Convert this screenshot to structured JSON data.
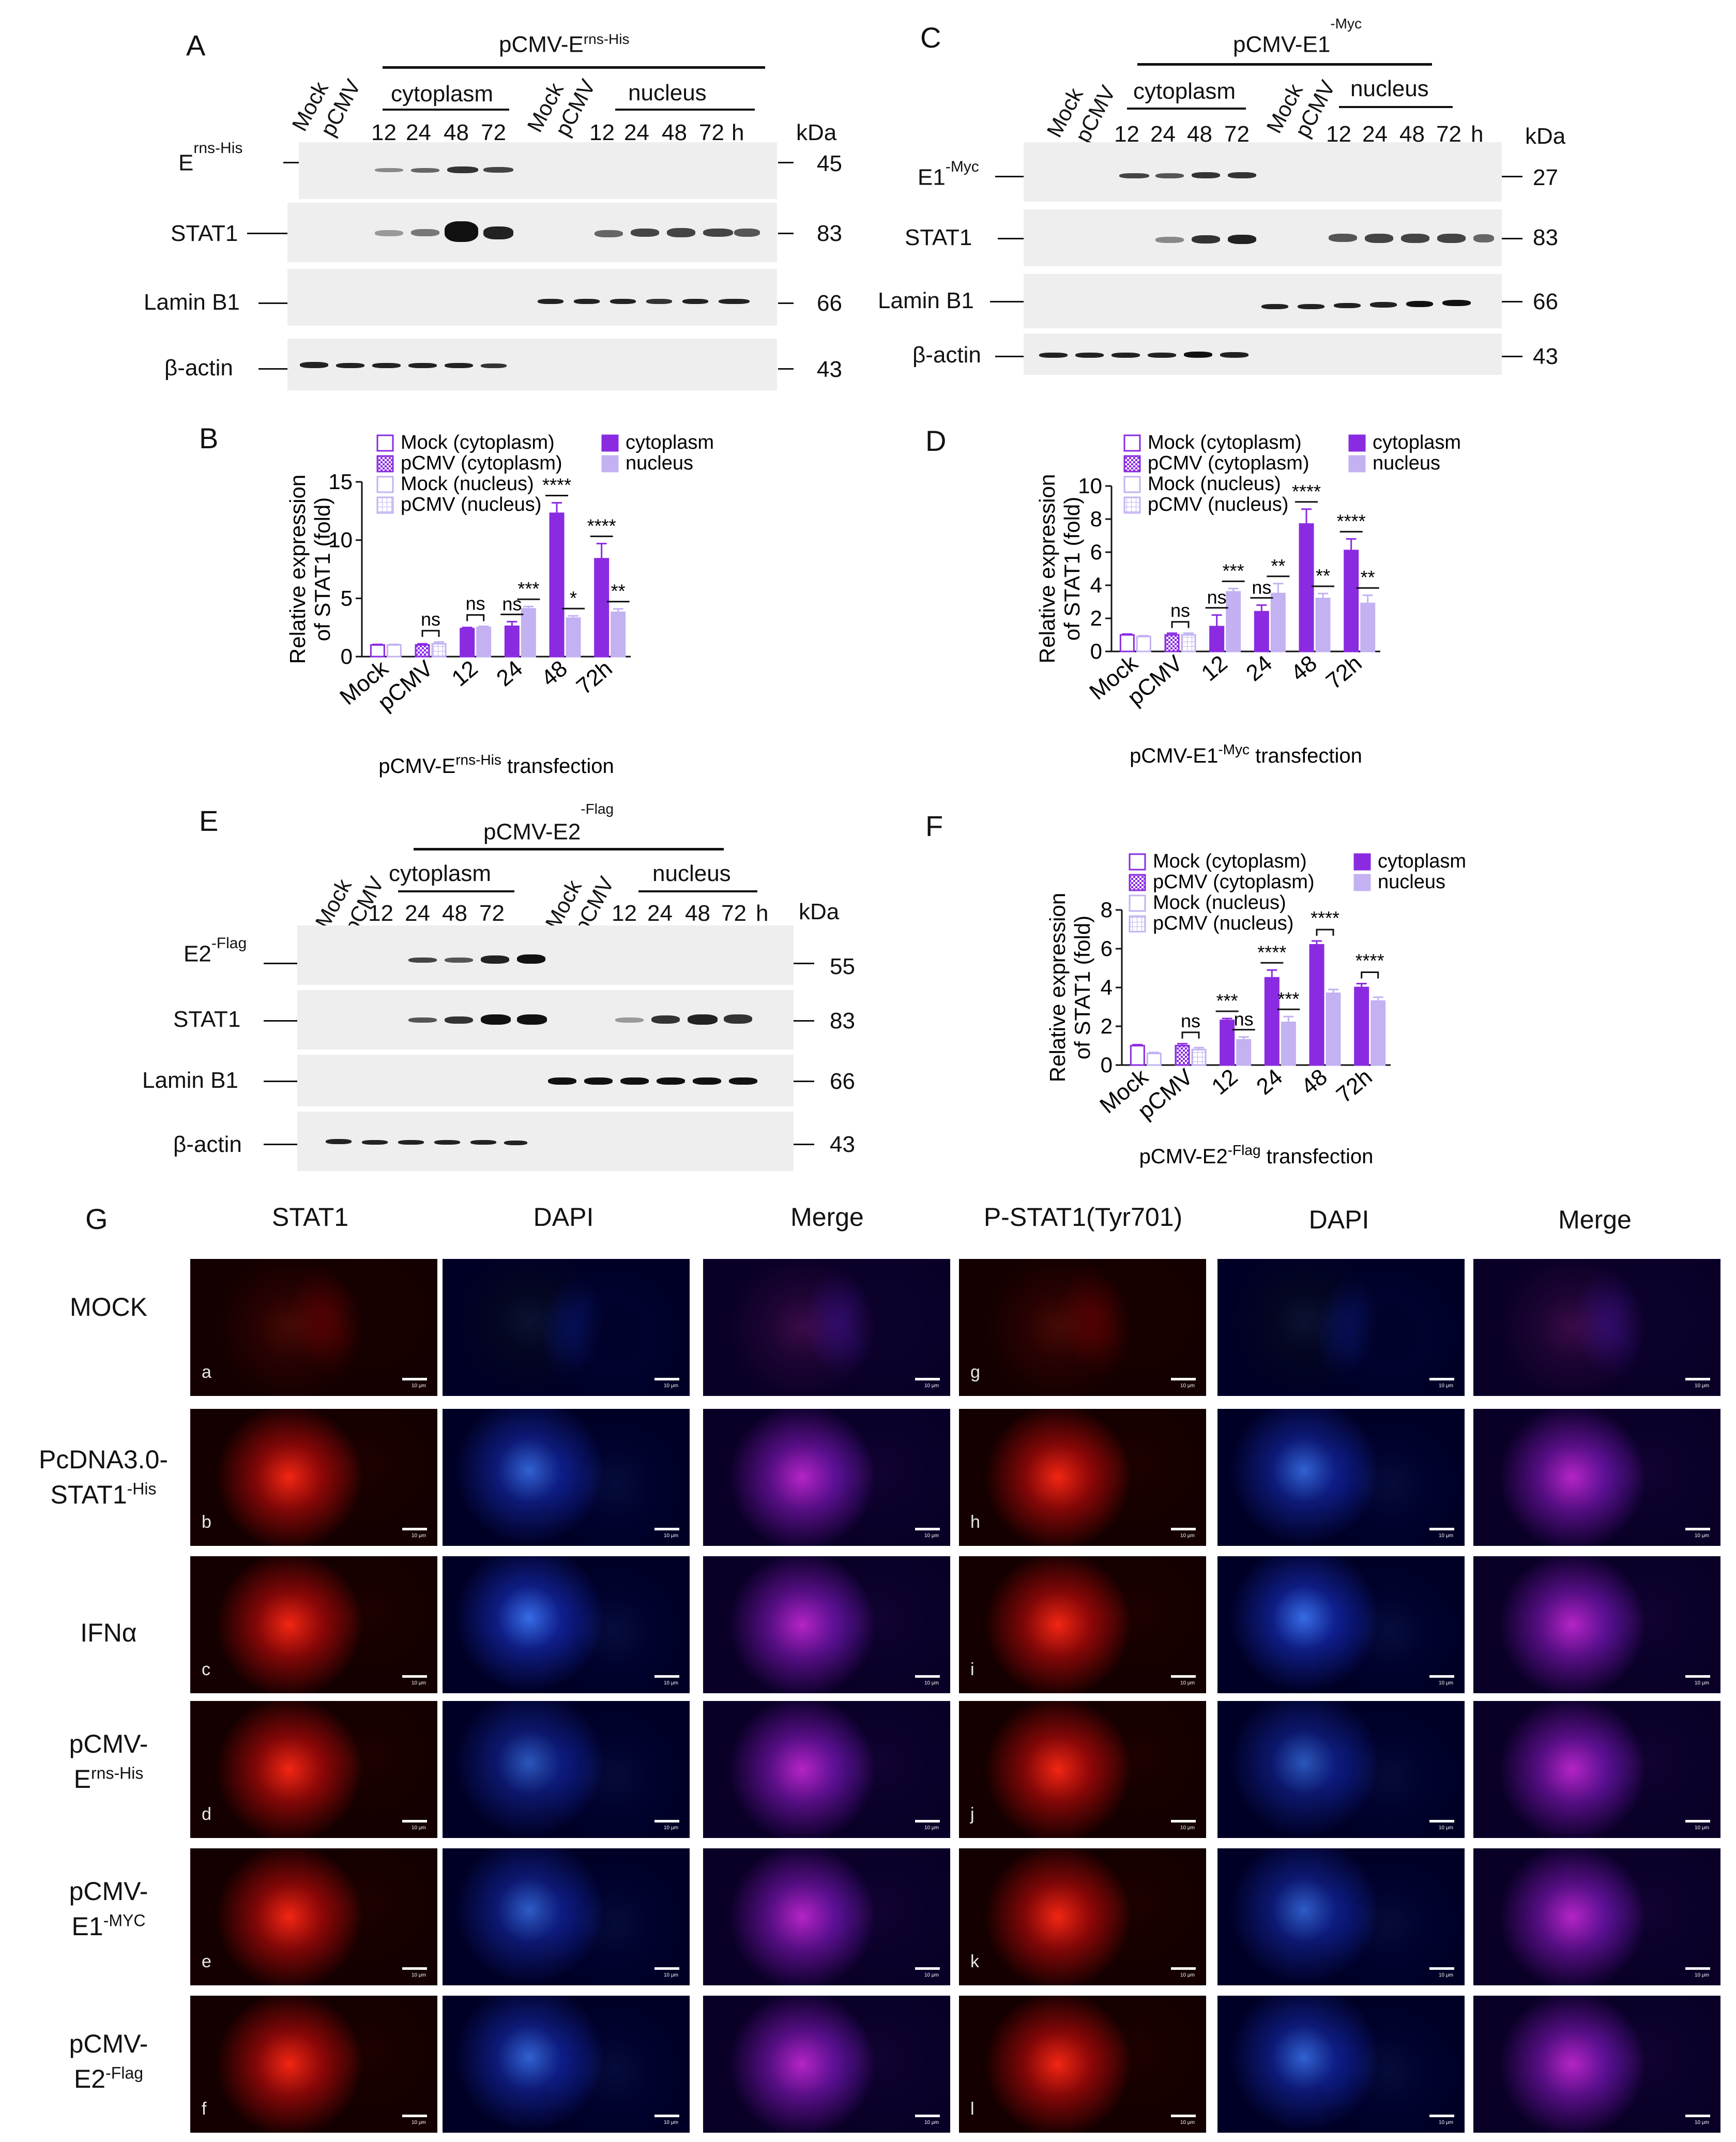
{
  "colors": {
    "cytoplasm": "#8a2be2",
    "nucleus": "#c3b1f2",
    "mock_outline": "#8a2be2",
    "nucleus_pattern": "#c3b1f2",
    "text": "#111111"
  },
  "panelA": {
    "label": "A",
    "construct": "pCMV-E",
    "construct_sup": "rns-His",
    "lanes_left": [
      "Mock",
      "pCMV"
    ],
    "cytoplasm_label": "cytoplasm",
    "nucleus_label": "nucleus",
    "lanes_right": [
      "Mock",
      "pCMV"
    ],
    "times_cyto": [
      "12",
      "24",
      "48",
      "72"
    ],
    "times_nuc": [
      "12",
      "24",
      "48",
      "72",
      "h"
    ],
    "kda": "kDa",
    "rows": [
      {
        "name": "E",
        "sup": "rns-His",
        "mw": "45"
      },
      {
        "name": "STAT1",
        "sup": "",
        "mw": "83"
      },
      {
        "name": "Lamin B1",
        "sup": "",
        "mw": "66"
      },
      {
        "name": "β-actin",
        "sup": "",
        "mw": "43"
      }
    ]
  },
  "panelC": {
    "label": "C",
    "construct": "pCMV-E1",
    "construct_sup": "-Myc",
    "lanes_left": [
      "Mock",
      "pCMV"
    ],
    "cytoplasm_label": "cytoplasm",
    "nucleus_label": "nucleus",
    "lanes_right": [
      "Mock",
      "pCMV"
    ],
    "times_cyto": [
      "12",
      "24",
      "48",
      "72"
    ],
    "times_nuc": [
      "12",
      "24",
      "48",
      "72",
      "h"
    ],
    "kda": "kDa",
    "rows": [
      {
        "name": "E1",
        "sup": "-Myc",
        "mw": "27"
      },
      {
        "name": "STAT1",
        "sup": "",
        "mw": "83"
      },
      {
        "name": "Lamin B1",
        "sup": "",
        "mw": "66"
      },
      {
        "name": "β-actin",
        "sup": "",
        "mw": "43"
      }
    ]
  },
  "panelE": {
    "label": "E",
    "construct": "pCMV-E2",
    "construct_sup": "-Flag",
    "lanes_left": [
      "Mock",
      "pCMV"
    ],
    "cytoplasm_label": "cytoplasm",
    "nucleus_label": "nucleus",
    "lanes_right": [
      "Mock",
      "pCMV"
    ],
    "times_cyto": [
      "12",
      "24",
      "48",
      "72"
    ],
    "times_nuc": [
      "12",
      "24",
      "48",
      "72",
      "h"
    ],
    "kda": "kDa",
    "rows": [
      {
        "name": "E2",
        "sup": "-Flag",
        "mw": "55"
      },
      {
        "name": "STAT1",
        "sup": "",
        "mw": "83"
      },
      {
        "name": "Lamin B1",
        "sup": "",
        "mw": "66"
      },
      {
        "name": "β-actin",
        "sup": "",
        "mw": "43"
      }
    ]
  },
  "legend": {
    "mock_cyto": "Mock (cytoplasm)",
    "pcmv_cyto": "pCMV (cytoplasm)",
    "mock_nuc": "Mock (nucleus)",
    "pcmv_nuc": "pCMV (nucleus)",
    "cytoplasm": "cytoplasm",
    "nucleus": "nucleus"
  },
  "chart_data": [
    {
      "panel": "B",
      "type": "bar",
      "ylabel_line1": "Relative expression",
      "ylabel_line2": "of STAT1 (fold)",
      "xlabel": "pCMV-E",
      "xlabel_sup": "rns-His",
      "xlabel_tail": " transfection",
      "categories": [
        "Mock",
        "pCMV",
        "12",
        "24",
        "48",
        "72h"
      ],
      "yticks": [
        0,
        5,
        10,
        15
      ],
      "ylim": [
        0,
        15
      ],
      "series": [
        {
          "name": "cytoplasm",
          "values": [
            1.0,
            1.0,
            2.4,
            2.6,
            12.3,
            8.4
          ],
          "errors": [
            0.05,
            0.1,
            0.1,
            0.4,
            0.9,
            1.3
          ]
        },
        {
          "name": "nucleus",
          "values": [
            1.0,
            1.1,
            2.5,
            4.1,
            3.3,
            3.8
          ],
          "errors": [
            0.05,
            0.15,
            0.1,
            0.2,
            0.2,
            0.3
          ]
        }
      ],
      "significance": [
        {
          "cat": 1,
          "label": "ns",
          "bracket": true
        },
        {
          "cat": 2,
          "label": "ns",
          "bracket": true
        },
        {
          "cat": 3,
          "label": "ns",
          "series": 0
        },
        {
          "cat": 3,
          "label": "***",
          "series": 1
        },
        {
          "cat": 4,
          "label": "****",
          "series": 0
        },
        {
          "cat": 4,
          "label": "*",
          "series": 1
        },
        {
          "cat": 5,
          "label": "****",
          "series": 0
        },
        {
          "cat": 5,
          "label": "**",
          "series": 1
        }
      ]
    },
    {
      "panel": "D",
      "type": "bar",
      "ylabel_line1": "Relative expression",
      "ylabel_line2": "of STAT1 (fold)",
      "xlabel": "pCMV-E1",
      "xlabel_sup": "-Myc",
      "xlabel_tail": " transfection",
      "categories": [
        "Mock",
        "pCMV",
        "12",
        "24",
        "48",
        "72h"
      ],
      "yticks": [
        0,
        2,
        4,
        6,
        8,
        10
      ],
      "ylim": [
        0,
        10
      ],
      "series": [
        {
          "name": "cytoplasm",
          "values": [
            1.0,
            1.0,
            1.5,
            2.4,
            7.7,
            6.1
          ],
          "errors": [
            0.05,
            0.1,
            0.7,
            0.4,
            0.9,
            0.7
          ]
        },
        {
          "name": "nucleus",
          "values": [
            0.9,
            1.0,
            3.6,
            3.5,
            3.2,
            2.9
          ],
          "errors": [
            0.05,
            0.1,
            0.2,
            0.6,
            0.3,
            0.5
          ]
        }
      ],
      "significance": [
        {
          "cat": 1,
          "label": "ns",
          "bracket": true
        },
        {
          "cat": 2,
          "label": "ns",
          "series": 0
        },
        {
          "cat": 2,
          "label": "***",
          "series": 1
        },
        {
          "cat": 3,
          "label": "ns",
          "series": 0
        },
        {
          "cat": 3,
          "label": "**",
          "series": 1
        },
        {
          "cat": 4,
          "label": "****",
          "series": 0
        },
        {
          "cat": 4,
          "label": "**",
          "series": 1
        },
        {
          "cat": 5,
          "label": "****",
          "series": 0
        },
        {
          "cat": 5,
          "label": "**",
          "series": 1
        }
      ]
    },
    {
      "panel": "F",
      "type": "bar",
      "ylabel_line1": "Relative expression",
      "ylabel_line2": "of STAT1 (fold)",
      "xlabel": "pCMV-E2",
      "xlabel_sup": "-Flag",
      "xlabel_tail": " transfection",
      "categories": [
        "Mock",
        "pCMV",
        "12",
        "24",
        "48",
        "72h"
      ],
      "yticks": [
        0,
        2,
        4,
        6,
        8
      ],
      "ylim": [
        0,
        8
      ],
      "series": [
        {
          "name": "cytoplasm",
          "values": [
            1.0,
            1.0,
            2.3,
            4.5,
            6.2,
            4.0
          ],
          "errors": [
            0.05,
            0.1,
            0.1,
            0.4,
            0.2,
            0.2
          ]
        },
        {
          "name": "nucleus",
          "values": [
            0.6,
            0.8,
            1.3,
            2.2,
            3.7,
            3.3
          ],
          "errors": [
            0.05,
            0.1,
            0.15,
            0.3,
            0.2,
            0.2
          ]
        }
      ],
      "significance": [
        {
          "cat": 1,
          "label": "ns",
          "bracket": true
        },
        {
          "cat": 2,
          "label": "***",
          "series": 0
        },
        {
          "cat": 2,
          "label": "ns",
          "series": 1
        },
        {
          "cat": 3,
          "label": "****",
          "series": 0
        },
        {
          "cat": 3,
          "label": "***",
          "series": 1
        },
        {
          "cat": 4,
          "label": "****",
          "bracket": true
        },
        {
          "cat": 5,
          "label": "****",
          "bracket": true
        }
      ]
    }
  ],
  "panelB_label": "B",
  "panelD_label": "D",
  "panelF_label": "F",
  "panelG": {
    "label": "G",
    "columns": [
      "STAT1",
      "DAPI",
      "Merge",
      "P-STAT1(Tyr701)",
      "DAPI",
      "Merge"
    ],
    "rows": [
      {
        "line1": "MOCK",
        "line2": "",
        "sup": ""
      },
      {
        "line1": "PcDNA3.0-",
        "line2": "STAT1",
        "sup": "-His"
      },
      {
        "line1": "IFNα",
        "line2": "",
        "sup": ""
      },
      {
        "line1": "pCMV-",
        "line2": "E",
        "sup": "rns-His"
      },
      {
        "line1": "pCMV-",
        "line2": "E1",
        "sup": "-MYC"
      },
      {
        "line1": "pCMV-",
        "line2": "E2",
        "sup": "-Flag"
      }
    ],
    "letters_left": [
      "a",
      "b",
      "c",
      "d",
      "e",
      "f"
    ],
    "letters_right": [
      "g",
      "h",
      "i",
      "j",
      "k",
      "l"
    ],
    "scale_text": "10 μm"
  }
}
